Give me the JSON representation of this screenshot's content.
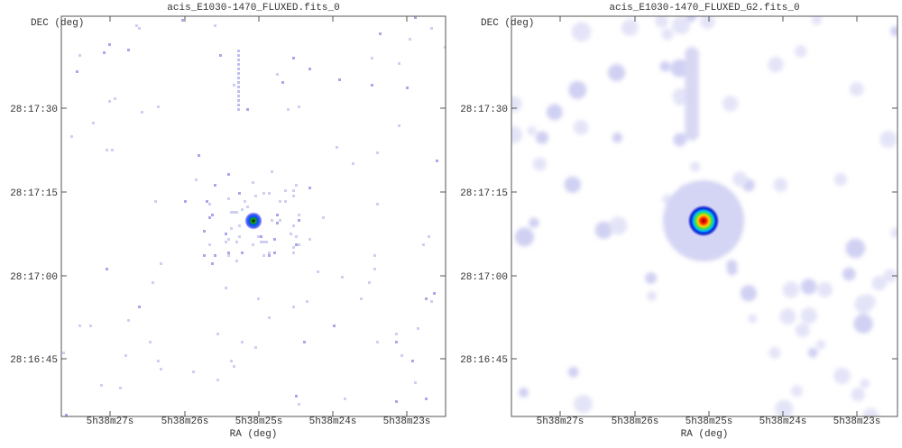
{
  "panels": [
    {
      "title": "acis_E1030-1470_FLUXED.fits_0",
      "y_label": "DEC (deg)",
      "x_label": "RA (deg)",
      "yticks": [
        "28:17:30",
        "28:17:15",
        "28:17:00",
        "28:16:45"
      ],
      "xticks": [
        "5h38m27s",
        "5h38m26s",
        "5h38m25s",
        "5h38m24s",
        "5h38m23s"
      ]
    },
    {
      "title": "acis_E1030-1470_FLUXED_G2.fits_0",
      "y_label": "DEC (deg)",
      "x_label": "RA (deg)",
      "yticks": [
        "28:17:30",
        "28:17:15",
        "28:17:00",
        "28:16:45"
      ],
      "xticks": [
        "5h38m27s",
        "5h38m26s",
        "5h38m25s",
        "5h38m24s",
        "5h38m23s"
      ]
    }
  ]
}
